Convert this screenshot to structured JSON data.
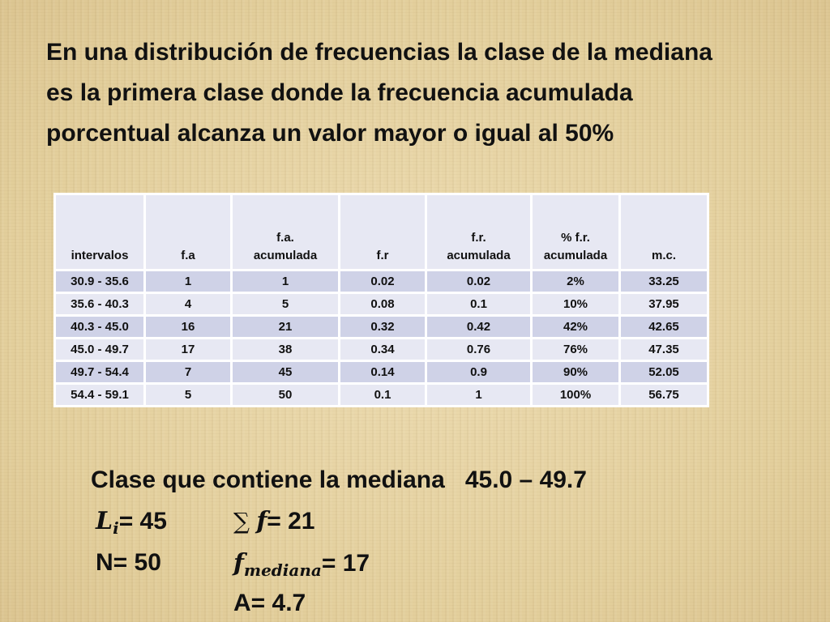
{
  "heading": "En una distribución de frecuencias la clase de la mediana es la primera clase donde la frecuencia acumulada porcentual alcanza un valor mayor o igual al 50%",
  "table": {
    "headers": [
      "intervalos",
      "f.a",
      "f.a.\nacumulada",
      "f.r",
      "f.r.\nacumulada",
      "% f.r.\nacumulada",
      "m.c."
    ],
    "rows": [
      [
        "30.9 - 35.6",
        "1",
        "1",
        "0.02",
        "0.02",
        "2%",
        "33.25"
      ],
      [
        "35.6 - 40.3",
        "4",
        "5",
        "0.08",
        "0.1",
        "10%",
        "37.95"
      ],
      [
        "40.3 - 45.0",
        "16",
        "21",
        "0.32",
        "0.42",
        "42%",
        "42.65"
      ],
      [
        "45.0 - 49.7",
        "17",
        "38",
        "0.34",
        "0.76",
        "76%",
        "47.35"
      ],
      [
        "49.7 - 54.4",
        "7",
        "45",
        "0.14",
        "0.9",
        "90%",
        "52.05"
      ],
      [
        "54.4 - 59.1",
        "5",
        "50",
        "0.1",
        "1",
        "100%",
        "56.75"
      ]
    ]
  },
  "summary": {
    "clase_text": "Clase que contiene la mediana   45.0 – 49.7",
    "li_symbol": "L",
    "li_sub": "i",
    "li_value": "= 45",
    "sum_symbol": "∑",
    "sum_f": "f",
    "sum_value": "= 21",
    "n_text": "N= 50",
    "fmed_symbol": "f",
    "fmed_sub": "mediana",
    "fmed_value": "= 17",
    "a_text": "A= 4.7"
  }
}
